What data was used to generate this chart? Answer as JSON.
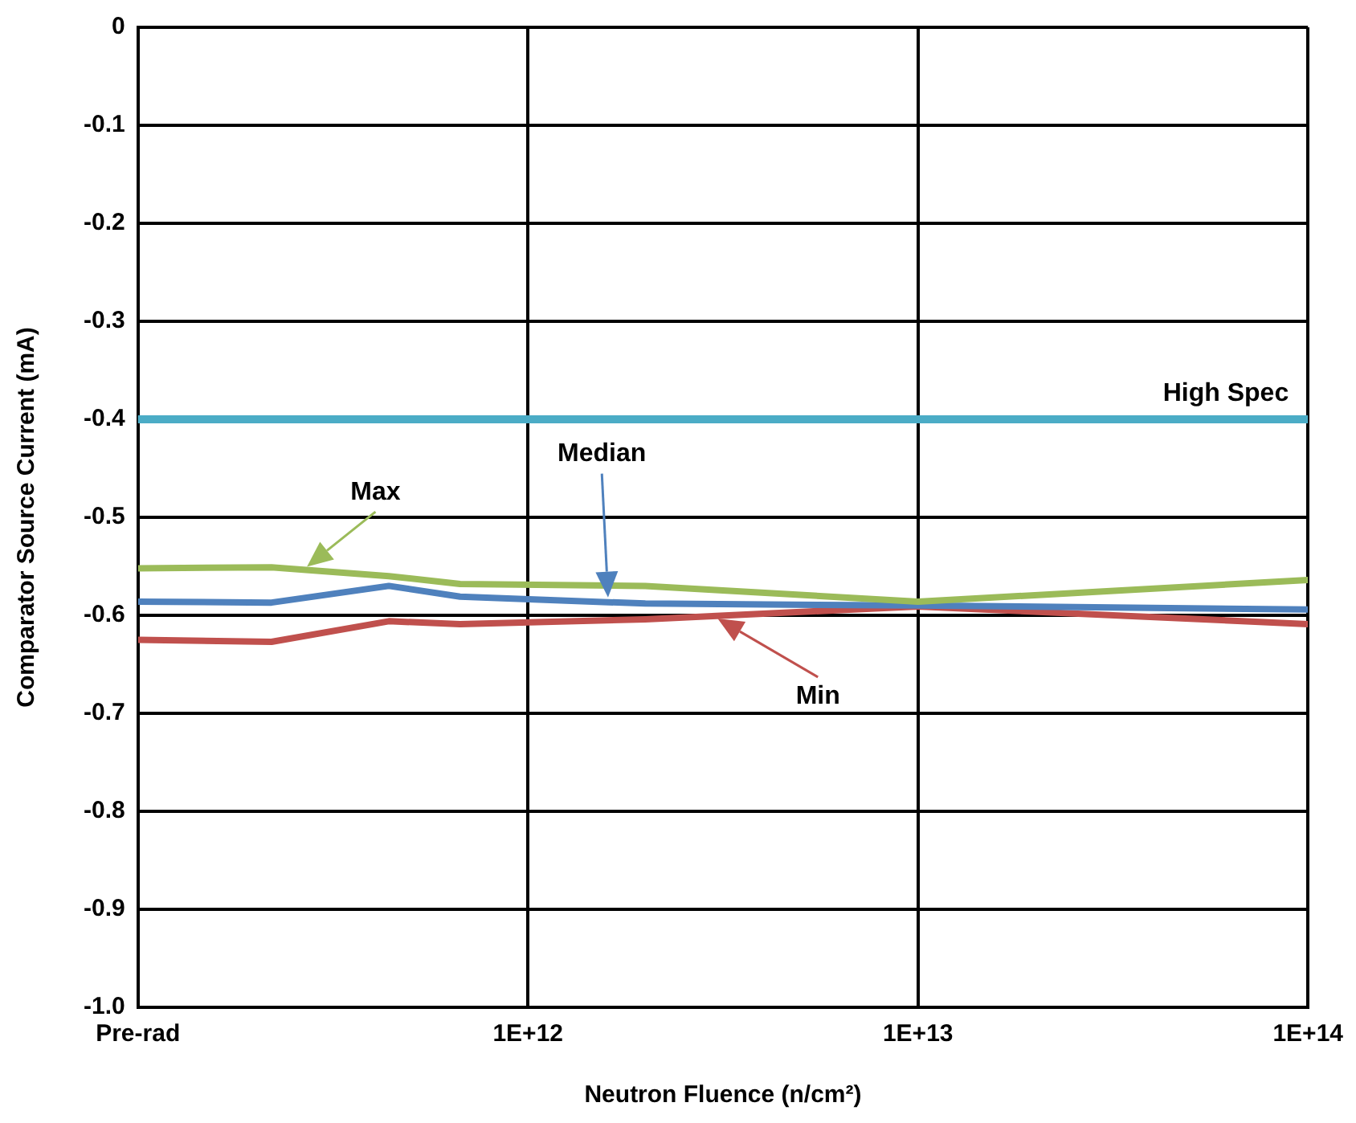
{
  "chart_data": {
    "type": "line",
    "xlabel": "Neutron Fluence (n/cm²)",
    "ylabel": "Comparator Source Current (mA)",
    "x": [
      100000000000.0,
      220000000000.0,
      440000000000.0,
      670000000000.0,
      2000000000000.0,
      10000000000000.0,
      100000000000000.0
    ],
    "series": [
      {
        "name": "Max",
        "color": "#9bbb59",
        "values": [
          -0.552,
          -0.551,
          -0.56,
          -0.568,
          -0.57,
          -0.586,
          -0.564
        ]
      },
      {
        "name": "Median",
        "color": "#4f81bd",
        "values": [
          -0.586,
          -0.587,
          -0.57,
          -0.581,
          -0.588,
          -0.59,
          -0.594
        ]
      },
      {
        "name": "Min",
        "color": "#c0504d",
        "values": [
          -0.625,
          -0.627,
          -0.606,
          -0.609,
          -0.604,
          -0.591,
          -0.609
        ]
      }
    ],
    "log": "x",
    "xlim": [
      100000000000.0,
      100000000000000.0
    ],
    "xticks": [
      {
        "value": 100000000000.0,
        "label": "Pre-rad"
      },
      {
        "value": 1000000000000.0,
        "label": "1E+12"
      },
      {
        "value": 10000000000000.0,
        "label": "1E+13"
      },
      {
        "value": 100000000000000.0,
        "label": "1E+14"
      }
    ],
    "ylim": [
      -1,
      0
    ],
    "yticks": [
      0,
      -0.1,
      -0.2,
      -0.3,
      -0.4,
      -0.5,
      -0.6,
      -0.7,
      -0.8,
      -0.9,
      {
        "value": -1,
        "label": "-1.0"
      }
    ],
    "ref_lines": [
      {
        "axis": "y",
        "value": -0.4,
        "label": "High Spec",
        "color": "#4bacc6"
      }
    ],
    "grid": true,
    "marker": "none",
    "line_style": "solid"
  }
}
